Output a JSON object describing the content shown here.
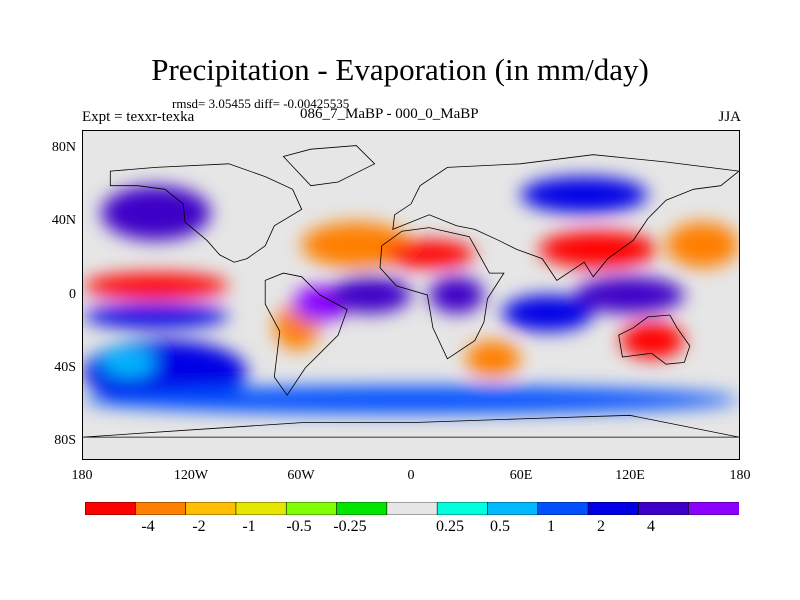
{
  "title": "Precipitation - Evaporation (in mm/day)",
  "stats": "rmsd= 3.05455 diff= -0.00425535",
  "experiment": "Expt = texxr-texka",
  "case": "086_7_MaBP - 000_0_MaBP",
  "season": "JJA",
  "latitude_labels": [
    "80N",
    "40N",
    "0",
    "40S",
    "80S"
  ],
  "longitude_labels": [
    "180",
    "120W",
    "60W",
    "0",
    "60E",
    "120E",
    "180"
  ],
  "colorbar": {
    "labels": [
      "-4",
      "-2",
      "-1",
      "-0.5",
      "-0.25",
      "0.25",
      "0.5",
      "1",
      "2",
      "4"
    ],
    "colors": [
      "#ff0000",
      "#ff7f00",
      "#ffbf00",
      "#e6e600",
      "#7fff00",
      "#00e600",
      "#e6e6e6",
      "#00ffdc",
      "#00b9ff",
      "#0050ff",
      "#0000e6",
      "#3c00c8",
      "#8c00ff"
    ]
  },
  "chart_data": {
    "type": "heatmap",
    "title": "Precipitation - Evaporation (in mm/day)",
    "units": "mm/day",
    "x_range": [
      -180,
      180
    ],
    "y_range": [
      -90,
      90
    ],
    "levels": [
      -4,
      -2,
      -1,
      -0.5,
      -0.25,
      0.25,
      0.5,
      1,
      2,
      4
    ],
    "regions": [
      {
        "name": "tropical-pacific-east-dry",
        "lon": [
          -180,
          -100
        ],
        "lat": [
          -2,
          12
        ],
        "bin": 0
      },
      {
        "name": "tropical-pacific-south-wet",
        "lon": [
          -180,
          -100
        ],
        "lat": [
          -18,
          -5
        ],
        "bin": 10
      },
      {
        "name": "north-pacific-wet",
        "lon": [
          -170,
          -110
        ],
        "lat": [
          30,
          60
        ],
        "bin": 11
      },
      {
        "name": "south-pacific-wet",
        "lon": [
          -180,
          -90
        ],
        "lat": [
          -60,
          -25
        ],
        "bin": 10
      },
      {
        "name": "south-pacific-gyre",
        "lon": [
          -170,
          -140
        ],
        "lat": [
          -45,
          -30
        ],
        "bin": 8
      },
      {
        "name": "south-america-dry",
        "lon": [
          -75,
          -50
        ],
        "lat": [
          -30,
          -5
        ],
        "bin": 1
      },
      {
        "name": "amazon-wet",
        "lon": [
          -65,
          -35
        ],
        "lat": [
          -15,
          5
        ],
        "bin": 12
      },
      {
        "name": "north-atlantic-dry",
        "lon": [
          -60,
          0
        ],
        "lat": [
          15,
          40
        ],
        "bin": 1
      },
      {
        "name": "tropical-atlantic-wet",
        "lon": [
          -45,
          0
        ],
        "lat": [
          -10,
          10
        ],
        "bin": 11
      },
      {
        "name": "sahara-dry",
        "lon": [
          -15,
          35
        ],
        "lat": [
          15,
          30
        ],
        "bin": 0
      },
      {
        "name": "central-africa-wet",
        "lon": [
          10,
          40
        ],
        "lat": [
          -10,
          10
        ],
        "bin": 11
      },
      {
        "name": "south-indian-ocean-dry",
        "lon": [
          30,
          60
        ],
        "lat": [
          -45,
          -25
        ],
        "bin": 1
      },
      {
        "name": "india-china-dry",
        "lon": [
          70,
          135
        ],
        "lat": [
          15,
          35
        ],
        "bin": 0
      },
      {
        "name": "north-asia-wet",
        "lon": [
          60,
          130
        ],
        "lat": [
          45,
          65
        ],
        "bin": 10
      },
      {
        "name": "maritime-continent-wet",
        "lon": [
          90,
          150
        ],
        "lat": [
          -10,
          10
        ],
        "bin": 11
      },
      {
        "name": "australia-dry",
        "lon": [
          115,
          150
        ],
        "lat": [
          -35,
          -15
        ],
        "bin": 0
      },
      {
        "name": "indian-ocean-wet",
        "lon": [
          50,
          100
        ],
        "lat": [
          -20,
          0
        ],
        "bin": 10
      },
      {
        "name": "southern-ocean-wet",
        "lon": [
          -180,
          180
        ],
        "lat": [
          -65,
          -50
        ],
        "bin": 9
      },
      {
        "name": "west-pacific-dry",
        "lon": [
          140,
          180
        ],
        "lat": [
          15,
          40
        ],
        "bin": 1
      }
    ]
  }
}
